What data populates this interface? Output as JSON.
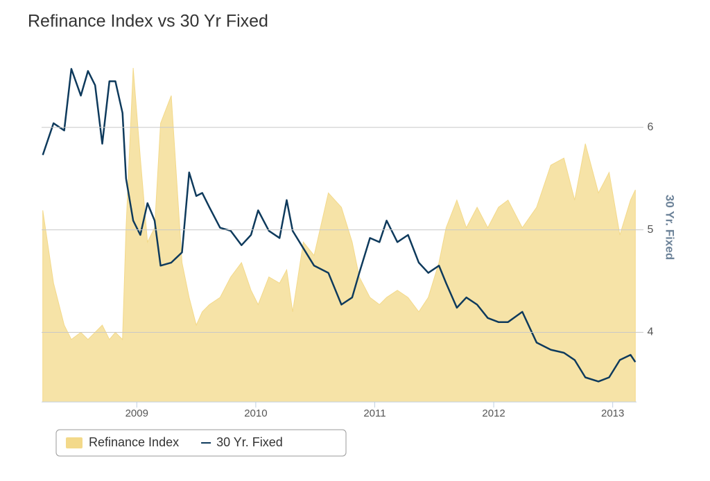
{
  "chart_data": {
    "type": "line",
    "title": "Refinance Index vs 30 Yr Fixed",
    "y2label": "30 Yr. Fixed",
    "xlim": [
      2008.2,
      2013.2
    ],
    "xticks": [
      2009,
      2010,
      2011,
      2012,
      2013
    ],
    "y2lim": [
      3.32,
      6.6
    ],
    "y2ticks": [
      4,
      5,
      6
    ],
    "grid": true,
    "legend": "bottom-left",
    "x": [
      2008.21,
      2008.3,
      2008.39,
      2008.45,
      2008.53,
      2008.59,
      2008.65,
      2008.71,
      2008.77,
      2008.82,
      2008.88,
      2008.91,
      2008.97,
      2009.03,
      2009.09,
      2009.15,
      2009.2,
      2009.29,
      2009.38,
      2009.44,
      2009.5,
      2009.55,
      2009.61,
      2009.7,
      2009.79,
      2009.88,
      2009.96,
      2010.02,
      2010.11,
      2010.2,
      2010.26,
      2010.31,
      2010.4,
      2010.49,
      2010.61,
      2010.72,
      2010.81,
      2010.87,
      2010.96,
      2011.04,
      2011.1,
      2011.19,
      2011.28,
      2011.37,
      2011.45,
      2011.54,
      2011.6,
      2011.69,
      2011.77,
      2011.86,
      2011.95,
      2012.04,
      2012.12,
      2012.24,
      2012.36,
      2012.48,
      2012.59,
      2012.68,
      2012.77,
      2012.88,
      2012.97,
      2013.06,
      2013.15,
      2013.19
    ],
    "series": [
      {
        "name": "Refinance Index",
        "type": "area",
        "axis": "y2",
        "color": "#f3d98a",
        "values": [
          5.19,
          4.48,
          4.07,
          3.93,
          4.0,
          3.93,
          4.0,
          4.07,
          3.93,
          4.0,
          3.93,
          5.02,
          6.58,
          5.7,
          4.88,
          5.02,
          6.04,
          6.31,
          4.68,
          4.34,
          4.07,
          4.2,
          4.27,
          4.34,
          4.54,
          4.68,
          4.41,
          4.27,
          4.54,
          4.48,
          4.61,
          4.2,
          4.88,
          4.75,
          5.36,
          5.22,
          4.88,
          4.54,
          4.34,
          4.27,
          4.34,
          4.41,
          4.34,
          4.2,
          4.34,
          4.68,
          5.02,
          5.29,
          5.02,
          5.22,
          5.02,
          5.22,
          5.29,
          5.02,
          5.22,
          5.63,
          5.7,
          5.29,
          5.84,
          5.36,
          5.56,
          4.95,
          5.29,
          5.39
        ]
      },
      {
        "name": "30 Yr. Fixed",
        "type": "line",
        "axis": "y2",
        "color": "#0e3a5c",
        "values": [
          5.73,
          6.04,
          5.97,
          6.57,
          6.31,
          6.55,
          6.41,
          5.84,
          6.45,
          6.45,
          6.14,
          5.5,
          5.09,
          4.95,
          5.26,
          5.09,
          4.65,
          4.68,
          4.78,
          5.56,
          5.33,
          5.36,
          5.22,
          5.02,
          4.99,
          4.85,
          4.95,
          5.19,
          4.99,
          4.92,
          5.29,
          4.99,
          4.82,
          4.65,
          4.58,
          4.27,
          4.34,
          4.58,
          4.92,
          4.88,
          5.09,
          4.88,
          4.95,
          4.68,
          4.58,
          4.65,
          4.48,
          4.24,
          4.34,
          4.27,
          4.14,
          4.1,
          4.1,
          4.2,
          3.9,
          3.83,
          3.8,
          3.73,
          3.56,
          3.52,
          3.56,
          3.73,
          3.78,
          3.71
        ]
      }
    ]
  }
}
